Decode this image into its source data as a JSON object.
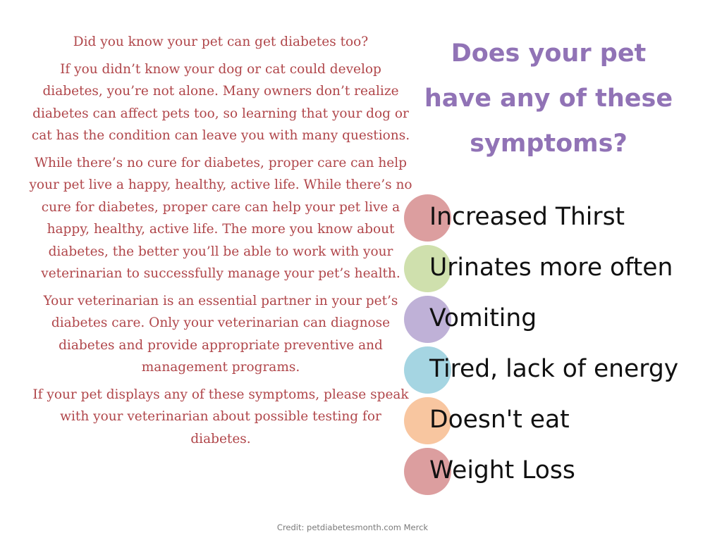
{
  "intro": {
    "question": "Did you know your pet can get diabetes too?",
    "paragraphs": [
      "If you didn’t know your dog or cat could develop diabetes, you’re not alone. Many owners don’t realize diabetes can affect pets too, so learning that your dog or cat has the condition can leave you with many questions.",
      "While there’s no cure for diabetes, proper care can help your pet live a happy, healthy, active life. While there’s no cure for diabetes, proper care can help your pet live a happy, healthy, active life. The more you know about diabetes, the better you’ll be able to work with your veterinarian to successfully manage your pet’s health.",
      "Your veterinarian is an essential partner in your pet’s diabetes care. Only your veterinarian can diagnose diabetes and provide appropriate preventive and management programs.",
      "If your pet displays any of these symptoms, please speak with your veterinarian about possible testing for diabetes."
    ]
  },
  "heading": {
    "line1": "Does your pet",
    "line2": "have any of these",
    "line3": "symptoms?"
  },
  "symptoms": [
    {
      "label": "Increased Thirst",
      "color": "#dc9e9f"
    },
    {
      "label": "Urinates more often",
      "color": "#cfe0ad"
    },
    {
      "label": "Vomiting",
      "color": "#bfb1d7"
    },
    {
      "label": "Tired, lack of energy",
      "color": "#a5d5e2"
    },
    {
      "label": "Doesn't eat",
      "color": "#f8c6a0"
    },
    {
      "label": "Weight Loss",
      "color": "#dc9e9f"
    }
  ],
  "credit": "Credit: petdiabetesmonth.com  Merck"
}
